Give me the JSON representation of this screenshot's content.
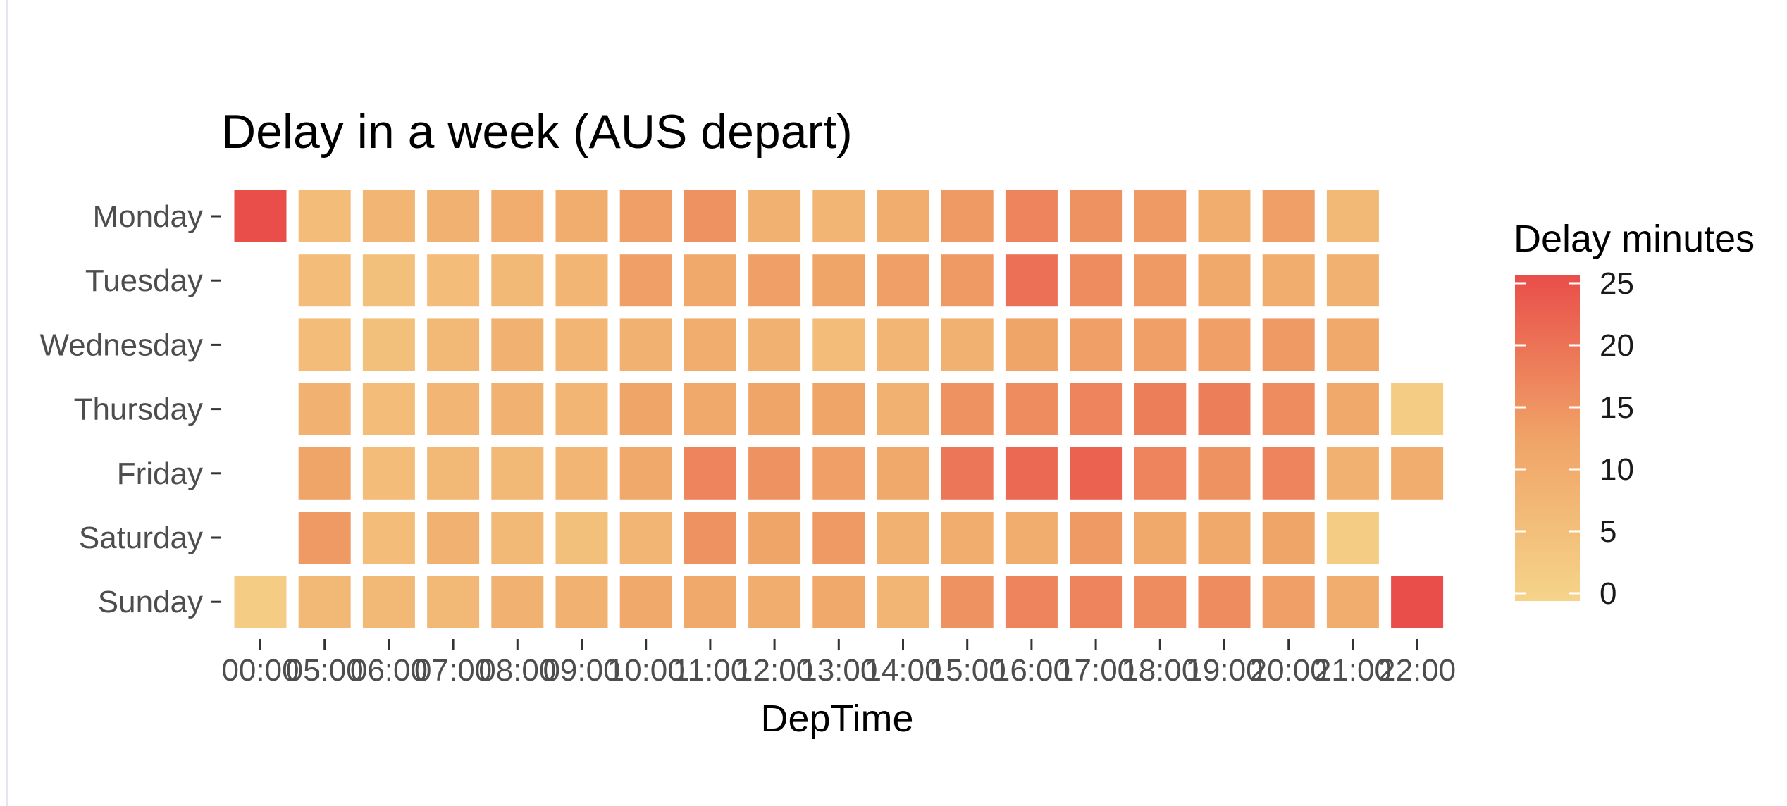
{
  "chart_data": {
    "type": "heatmap",
    "title": "Delay in a week (AUS depart)",
    "xlabel": "DepTime",
    "ylabel": "",
    "x": [
      "00:00",
      "05:00",
      "06:00",
      "07:00",
      "08:00",
      "09:00",
      "10:00",
      "11:00",
      "12:00",
      "13:00",
      "14:00",
      "15:00",
      "16:00",
      "17:00",
      "18:00",
      "19:00",
      "20:00",
      "21:00",
      "22:00"
    ],
    "y": [
      "Monday",
      "Tuesday",
      "Wednesday",
      "Thursday",
      "Friday",
      "Saturday",
      "Sunday"
    ],
    "values": [
      [
        25,
        6,
        8,
        9,
        10,
        10,
        13,
        15,
        9,
        8,
        10,
        14,
        17,
        15,
        14,
        10,
        13,
        7,
        null
      ],
      [
        null,
        6,
        5,
        6,
        7,
        8,
        13,
        11,
        13,
        12,
        13,
        14,
        20,
        16,
        14,
        11,
        10,
        9,
        null
      ],
      [
        null,
        6,
        5,
        7,
        9,
        8,
        9,
        10,
        9,
        6,
        8,
        9,
        12,
        13,
        13,
        13,
        14,
        11,
        null
      ],
      [
        null,
        9,
        6,
        8,
        9,
        8,
        12,
        11,
        12,
        12,
        9,
        15,
        16,
        17,
        18,
        18,
        16,
        11,
        2
      ],
      [
        null,
        12,
        6,
        7,
        7,
        8,
        11,
        17,
        15,
        13,
        11,
        19,
        21,
        22,
        17,
        15,
        17,
        9,
        10
      ],
      [
        null,
        14,
        6,
        9,
        7,
        5,
        8,
        15,
        12,
        14,
        9,
        10,
        10,
        14,
        11,
        11,
        12,
        2,
        null
      ],
      [
        2,
        7,
        7,
        7,
        9,
        9,
        11,
        11,
        10,
        11,
        8,
        15,
        17,
        17,
        16,
        16,
        13,
        10,
        25
      ]
    ],
    "colorbar": {
      "title": "Delay minutes",
      "min": 0,
      "max": 25,
      "ticks": [
        0,
        5,
        10,
        15,
        20,
        25
      ],
      "low_color": "#f5d48a",
      "mid_color": "#f0a367",
      "high_color": "#e94e4a"
    },
    "grid": false,
    "legend_position": "right"
  }
}
